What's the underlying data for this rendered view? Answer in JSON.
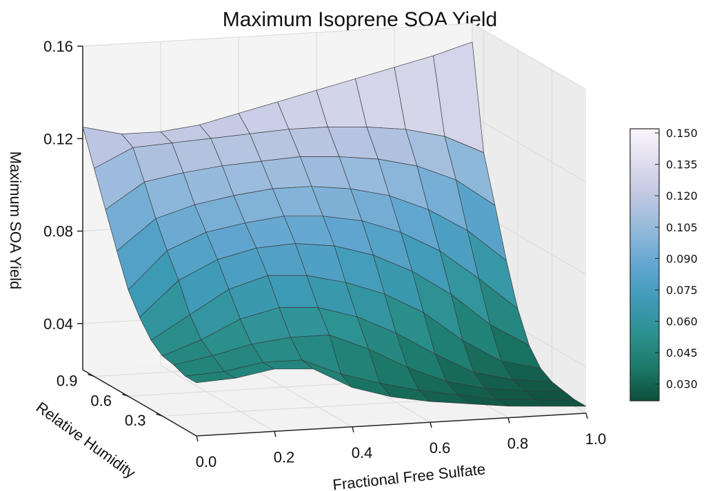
{
  "chart_data": {
    "type": "surface3d",
    "title": "Maximum Isoprene SOA Yield",
    "xlabel": "Fractional Free Sulfate",
    "ylabel": "Relative Humidity",
    "zlabel": "Maximum SOA Yield",
    "x_ticks": [
      "0.0",
      "0.2",
      "0.4",
      "0.6",
      "0.8",
      "1.0"
    ],
    "y_ticks": [
      "0.3",
      "0.6",
      "0.9"
    ],
    "z_ticks": [
      "0.04",
      "0.08",
      "0.12",
      "0.16"
    ],
    "xlim": [
      0,
      1
    ],
    "ylim": [
      0,
      1
    ],
    "zlim": [
      0.02,
      0.16
    ],
    "grid": true,
    "colormap": "PuBuGn_r",
    "colorbar": {
      "ticks": [
        "0.030",
        "0.045",
        "0.060",
        "0.075",
        "0.090",
        "0.105",
        "0.120",
        "0.135",
        "0.150"
      ],
      "range": [
        0.022,
        0.152
      ],
      "colors": [
        "#0f4f3c",
        "#1c7a6a",
        "#2c9190",
        "#3f9bb8",
        "#62a6d0",
        "#92b9db",
        "#bfc7e2",
        "#dfdcee",
        "#fbf6fb"
      ]
    },
    "surface": {
      "x": [
        0.0,
        0.1,
        0.2,
        0.3,
        0.4,
        0.5,
        0.6,
        0.7,
        0.8,
        0.9,
        1.0
      ],
      "y": [
        0.0,
        0.1,
        0.2,
        0.3,
        0.4,
        0.5,
        0.6,
        0.7,
        0.8,
        0.9,
        1.0
      ],
      "z": [
        [
          0.043,
          0.044,
          0.047,
          0.046,
          0.037,
          0.032,
          0.029,
          0.027,
          0.025,
          0.024,
          0.023
        ],
        [
          0.043,
          0.044,
          0.047,
          0.047,
          0.04,
          0.035,
          0.031,
          0.028,
          0.025,
          0.024,
          0.023
        ],
        [
          0.045,
          0.048,
          0.052,
          0.054,
          0.054,
          0.047,
          0.038,
          0.031,
          0.027,
          0.025,
          0.024
        ],
        [
          0.046,
          0.052,
          0.06,
          0.064,
          0.063,
          0.058,
          0.05,
          0.04,
          0.031,
          0.027,
          0.025
        ],
        [
          0.05,
          0.06,
          0.07,
          0.075,
          0.074,
          0.07,
          0.064,
          0.055,
          0.042,
          0.032,
          0.028
        ],
        [
          0.057,
          0.072,
          0.08,
          0.084,
          0.085,
          0.083,
          0.078,
          0.07,
          0.059,
          0.045,
          0.035
        ],
        [
          0.066,
          0.082,
          0.089,
          0.092,
          0.094,
          0.093,
          0.09,
          0.084,
          0.075,
          0.062,
          0.048
        ],
        [
          0.08,
          0.093,
          0.098,
          0.101,
          0.103,
          0.103,
          0.101,
          0.097,
          0.09,
          0.08,
          0.066
        ],
        [
          0.095,
          0.106,
          0.109,
          0.111,
          0.112,
          0.113,
          0.112,
          0.11,
          0.106,
          0.099,
          0.087
        ],
        [
          0.11,
          0.118,
          0.119,
          0.12,
          0.121,
          0.122,
          0.122,
          0.121,
          0.119,
          0.115,
          0.107
        ],
        [
          0.125,
          0.121,
          0.121,
          0.123,
          0.127,
          0.131,
          0.135,
          0.139,
          0.143,
          0.147,
          0.152
        ]
      ]
    }
  }
}
